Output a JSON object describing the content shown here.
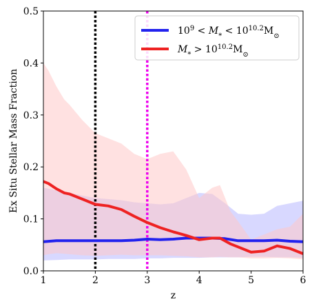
{
  "chart_data": {
    "type": "line",
    "title": "",
    "xlabel": "z",
    "ylabel": "Ex Situ Stellar Mass Fraction",
    "xlim": [
      1,
      6
    ],
    "ylim": [
      0,
      0.5
    ],
    "xticks": [
      1,
      2,
      3,
      4,
      5,
      6
    ],
    "xtick_labels": [
      "1",
      "2",
      "3",
      "4",
      "5",
      "6"
    ],
    "yticks": [
      0.0,
      0.1,
      0.2,
      0.3,
      0.4,
      0.5
    ],
    "ytick_labels": [
      "0.0",
      "0.1",
      "0.2",
      "0.3",
      "0.4",
      "0.5"
    ],
    "grid": false,
    "legend_position": "top-right",
    "vertical_lines": [
      {
        "x": 2,
        "color": "#000000",
        "style": "dotted"
      },
      {
        "x": 3,
        "color": "#ee00ee",
        "style": "dotted"
      }
    ],
    "series": [
      {
        "name": "10^9 < M_* < 10^10.2 M_⊙",
        "legend_label": {
          "pre": "10",
          "sup1": "9",
          "mid": " < M",
          "sub": "*",
          "mid2": " < 10",
          "sup2": "10.2",
          "post": "M",
          "post_sub": "⊙"
        },
        "color": "#2222ee",
        "band_color": "#b8b8ff",
        "x": [
          1.0,
          1.25,
          1.5,
          1.75,
          2.0,
          2.25,
          2.5,
          2.75,
          3.0,
          3.25,
          3.5,
          3.75,
          4.0,
          4.25,
          4.5,
          4.75,
          5.0,
          5.25,
          5.5,
          5.75,
          6.0
        ],
        "y": [
          0.056,
          0.058,
          0.058,
          0.058,
          0.058,
          0.058,
          0.058,
          0.059,
          0.061,
          0.06,
          0.061,
          0.063,
          0.063,
          0.063,
          0.062,
          0.058,
          0.058,
          0.058,
          0.059,
          0.057,
          0.056
        ],
        "lower": [
          0.02,
          0.021,
          0.022,
          0.022,
          0.022,
          0.023,
          0.023,
          0.023,
          0.024,
          0.024,
          0.025,
          0.025,
          0.025,
          0.026,
          0.026,
          0.026,
          0.027,
          0.027,
          0.026,
          0.026,
          0.025
        ],
        "upper": [
          0.16,
          0.155,
          0.15,
          0.145,
          0.14,
          0.138,
          0.136,
          0.132,
          0.13,
          0.128,
          0.13,
          0.14,
          0.15,
          0.148,
          0.13,
          0.11,
          0.108,
          0.11,
          0.125,
          0.13,
          0.135
        ]
      },
      {
        "name": "M_* > 10^10.2 M_⊙",
        "legend_label": {
          "pre": "M",
          "sub": "*",
          "mid": " > 10",
          "sup": "10.2",
          "post": "M",
          "post_sub": "⊙"
        },
        "color": "#ee2222",
        "band_color": "#ffc8c8",
        "x": [
          1.0,
          1.1,
          1.25,
          1.4,
          1.5,
          1.75,
          2.0,
          2.25,
          2.5,
          2.75,
          3.0,
          3.25,
          3.5,
          3.75,
          4.0,
          4.25,
          4.4,
          4.6,
          4.75,
          5.0,
          5.25,
          5.5,
          5.75,
          6.0
        ],
        "y": [
          0.172,
          0.168,
          0.158,
          0.15,
          0.148,
          0.138,
          0.128,
          0.125,
          0.118,
          0.105,
          0.093,
          0.083,
          0.075,
          0.068,
          0.06,
          0.063,
          0.063,
          0.052,
          0.046,
          0.036,
          0.038,
          0.048,
          0.043,
          0.033
        ],
        "lower": [
          0.03,
          0.032,
          0.034,
          0.033,
          0.032,
          0.03,
          0.029,
          0.03,
          0.031,
          0.03,
          0.03,
          0.03,
          0.029,
          0.028,
          0.026,
          0.026,
          0.027,
          0.026,
          0.026,
          0.024,
          0.024,
          0.025,
          0.024,
          0.022
        ],
        "upper": [
          0.4,
          0.385,
          0.355,
          0.33,
          0.32,
          0.29,
          0.265,
          0.255,
          0.245,
          0.225,
          0.215,
          0.225,
          0.23,
          0.195,
          0.14,
          0.16,
          0.165,
          0.115,
          0.095,
          0.06,
          0.07,
          0.08,
          0.085,
          0.11
        ]
      }
    ]
  }
}
